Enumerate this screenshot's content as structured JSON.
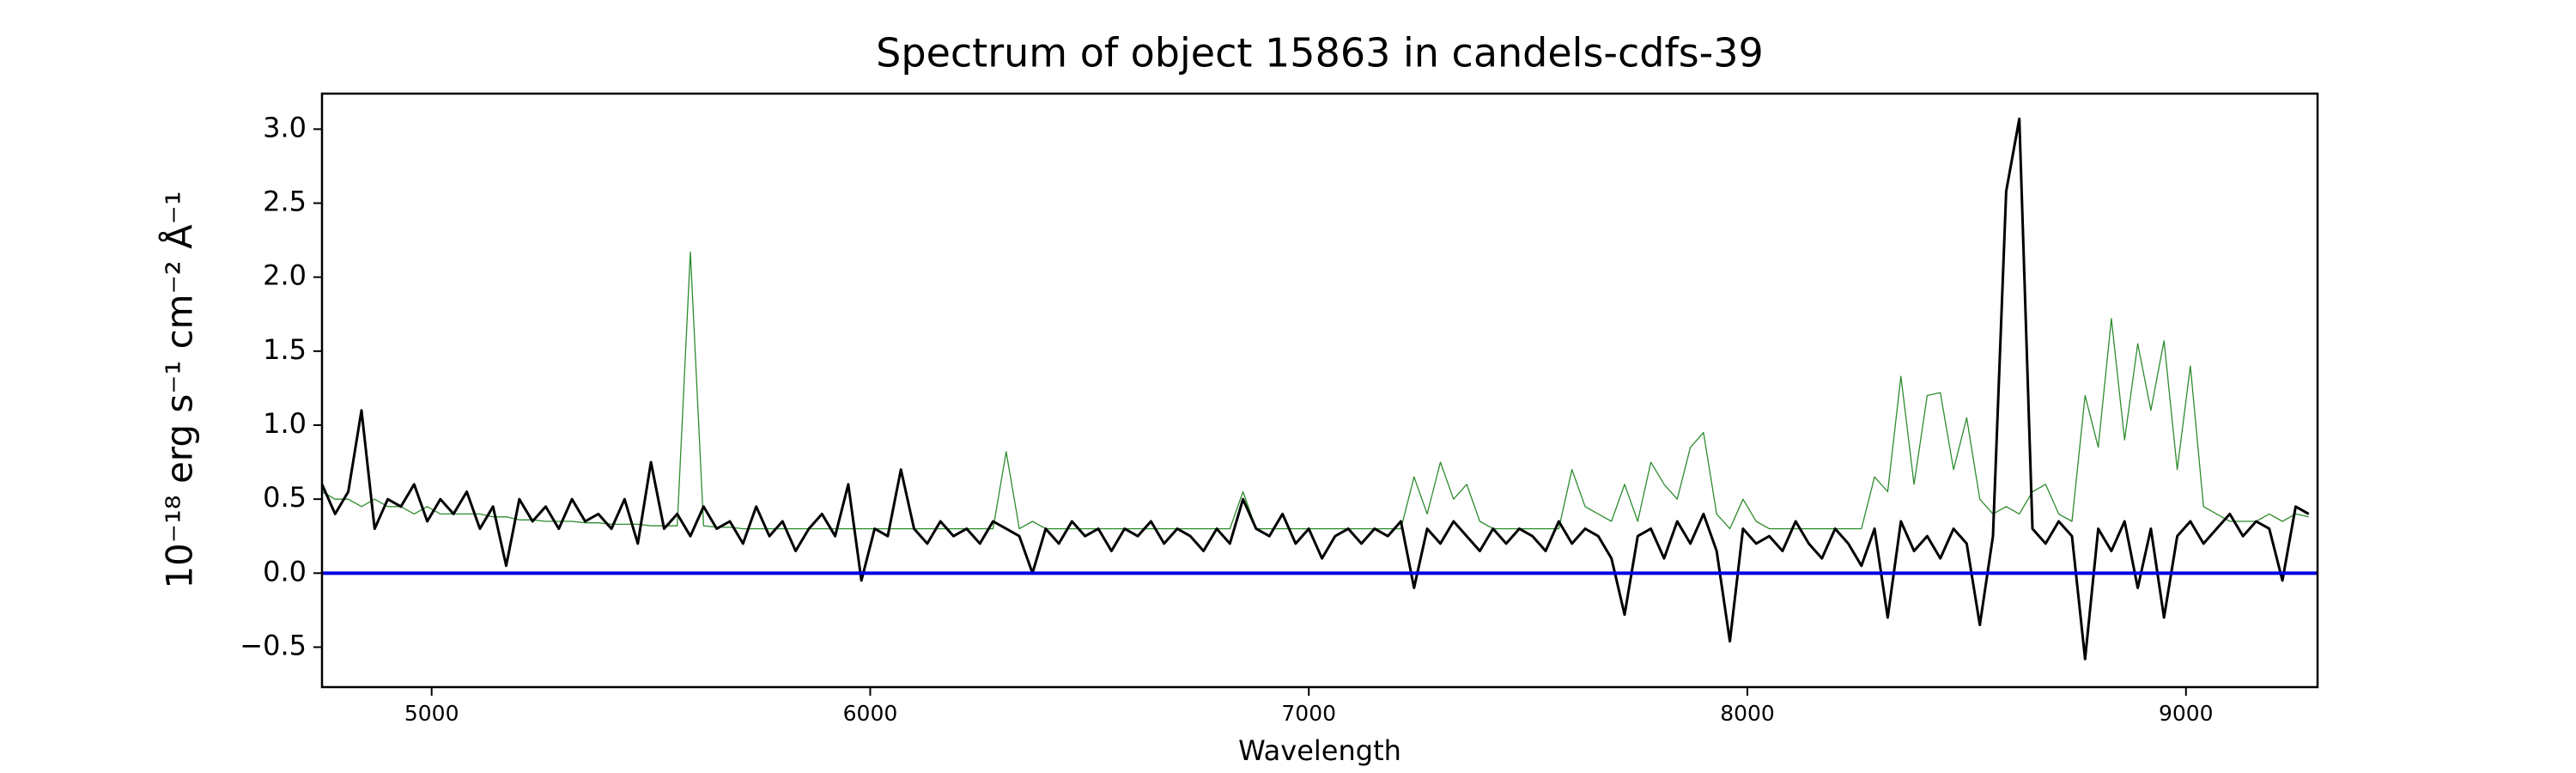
{
  "chart_data": {
    "type": "line",
    "title": "Spectrum of object 15863 in candels-cdfs-39",
    "xlabel": "Wavelength",
    "ylabel": "10⁻¹⁸ erg s⁻¹ cm⁻² Å⁻¹",
    "x": [
      4750,
      4780,
      4810,
      4840,
      4870,
      4900,
      4930,
      4960,
      4990,
      5020,
      5050,
      5080,
      5110,
      5140,
      5170,
      5200,
      5230,
      5260,
      5290,
      5320,
      5350,
      5380,
      5410,
      5440,
      5470,
      5500,
      5530,
      5560,
      5590,
      5620,
      5650,
      5680,
      5710,
      5740,
      5770,
      5800,
      5830,
      5860,
      5890,
      5920,
      5950,
      5980,
      6010,
      6040,
      6070,
      6100,
      6130,
      6160,
      6190,
      6220,
      6250,
      6280,
      6310,
      6340,
      6370,
      6400,
      6430,
      6460,
      6490,
      6520,
      6550,
      6580,
      6610,
      6640,
      6670,
      6700,
      6730,
      6760,
      6790,
      6820,
      6850,
      6880,
      6910,
      6940,
      6970,
      7000,
      7030,
      7060,
      7090,
      7120,
      7150,
      7180,
      7210,
      7240,
      7270,
      7300,
      7330,
      7360,
      7390,
      7420,
      7450,
      7480,
      7510,
      7540,
      7570,
      7600,
      7630,
      7660,
      7690,
      7720,
      7750,
      7780,
      7810,
      7840,
      7870,
      7900,
      7930,
      7960,
      7990,
      8020,
      8050,
      8080,
      8110,
      8140,
      8170,
      8200,
      8230,
      8260,
      8290,
      8320,
      8350,
      8380,
      8410,
      8440,
      8470,
      8500,
      8530,
      8560,
      8590,
      8620,
      8650,
      8680,
      8710,
      8740,
      8770,
      8800,
      8830,
      8860,
      8890,
      8920,
      8950,
      8980,
      9010,
      9040,
      9070,
      9100,
      9130,
      9160,
      9190,
      9220,
      9250,
      9280
    ],
    "series": [
      {
        "color": "#2e8b2e",
        "linewidth": 1.3,
        "values": [
          0.55,
          0.5,
          0.5,
          0.45,
          0.5,
          0.45,
          0.45,
          0.4,
          0.45,
          0.4,
          0.4,
          0.4,
          0.4,
          0.38,
          0.38,
          0.36,
          0.36,
          0.35,
          0.35,
          0.35,
          0.34,
          0.34,
          0.33,
          0.33,
          0.33,
          0.32,
          0.32,
          0.32,
          2.17,
          0.32,
          0.31,
          0.31,
          0.3,
          0.3,
          0.3,
          0.3,
          0.3,
          0.3,
          0.3,
          0.3,
          0.3,
          0.3,
          0.3,
          0.3,
          0.3,
          0.3,
          0.3,
          0.3,
          0.3,
          0.3,
          0.3,
          0.3,
          0.82,
          0.3,
          0.35,
          0.3,
          0.3,
          0.3,
          0.3,
          0.3,
          0.3,
          0.3,
          0.3,
          0.3,
          0.3,
          0.3,
          0.3,
          0.3,
          0.3,
          0.3,
          0.55,
          0.3,
          0.3,
          0.3,
          0.3,
          0.3,
          0.3,
          0.3,
          0.3,
          0.3,
          0.3,
          0.3,
          0.3,
          0.65,
          0.4,
          0.75,
          0.5,
          0.6,
          0.35,
          0.3,
          0.3,
          0.3,
          0.3,
          0.3,
          0.3,
          0.7,
          0.45,
          0.4,
          0.35,
          0.6,
          0.35,
          0.75,
          0.6,
          0.5,
          0.85,
          0.95,
          0.4,
          0.3,
          0.5,
          0.35,
          0.3,
          0.3,
          0.3,
          0.3,
          0.3,
          0.3,
          0.3,
          0.3,
          0.65,
          0.55,
          1.33,
          0.6,
          1.2,
          1.22,
          0.7,
          1.05,
          0.5,
          0.4,
          0.45,
          0.4,
          0.55,
          0.6,
          0.4,
          0.35,
          1.2,
          0.85,
          1.72,
          0.9,
          1.55,
          1.1,
          1.57,
          0.7,
          1.4,
          0.45,
          0.4,
          0.35,
          0.35,
          0.35,
          0.4,
          0.35,
          0.4,
          0.38
        ]
      },
      {
        "color": "#000000",
        "linewidth": 3,
        "values": [
          0.6,
          0.4,
          0.55,
          1.1,
          0.3,
          0.5,
          0.45,
          0.6,
          0.35,
          0.5,
          0.4,
          0.55,
          0.3,
          0.45,
          0.05,
          0.5,
          0.35,
          0.45,
          0.3,
          0.5,
          0.35,
          0.4,
          0.3,
          0.5,
          0.2,
          0.75,
          0.3,
          0.4,
          0.25,
          0.45,
          0.3,
          0.35,
          0.2,
          0.45,
          0.25,
          0.35,
          0.15,
          0.3,
          0.4,
          0.25,
          0.6,
          -0.05,
          0.3,
          0.25,
          0.7,
          0.3,
          0.2,
          0.35,
          0.25,
          0.3,
          0.2,
          0.35,
          0.3,
          0.25,
          0.0,
          0.3,
          0.2,
          0.35,
          0.25,
          0.3,
          0.15,
          0.3,
          0.25,
          0.35,
          0.2,
          0.3,
          0.25,
          0.15,
          0.3,
          0.2,
          0.5,
          0.3,
          0.25,
          0.4,
          0.2,
          0.3,
          0.1,
          0.25,
          0.3,
          0.2,
          0.3,
          0.25,
          0.35,
          -0.1,
          0.3,
          0.2,
          0.35,
          0.25,
          0.15,
          0.3,
          0.2,
          0.3,
          0.25,
          0.15,
          0.35,
          0.2,
          0.3,
          0.25,
          0.1,
          -0.28,
          0.25,
          0.3,
          0.1,
          0.35,
          0.2,
          0.4,
          0.15,
          -0.46,
          0.3,
          0.2,
          0.25,
          0.15,
          0.35,
          0.2,
          0.1,
          0.3,
          0.2,
          0.05,
          0.3,
          -0.3,
          0.35,
          0.15,
          0.25,
          0.1,
          0.3,
          0.2,
          -0.35,
          0.25,
          2.58,
          3.07,
          0.3,
          0.2,
          0.35,
          0.25,
          -0.58,
          0.3,
          0.15,
          0.35,
          -0.1,
          0.3,
          -0.3,
          0.25,
          0.35,
          0.2,
          0.3,
          0.4,
          0.25,
          0.35,
          0.3,
          -0.05,
          0.45,
          0.4
        ]
      }
    ],
    "hline": {
      "y": 0,
      "color": "#0000e0",
      "linewidth": 4
    },
    "xlim": [
      4750,
      9300
    ],
    "xticks": [
      5000,
      6000,
      7000,
      8000,
      9000
    ],
    "ylim": [
      -0.77,
      3.24
    ],
    "yticks": [
      {
        "value": -0.5,
        "label": "−0.5"
      },
      {
        "value": 0,
        "label": "0.0"
      },
      {
        "value": 0.5,
        "label": "0.5"
      },
      {
        "value": 1,
        "label": "1.0"
      },
      {
        "value": 1.5,
        "label": "1.5"
      },
      {
        "value": 2,
        "label": "2.0"
      },
      {
        "value": 2.5,
        "label": "2.5"
      },
      {
        "value": 3,
        "label": "3.0"
      }
    ],
    "grid": false
  }
}
